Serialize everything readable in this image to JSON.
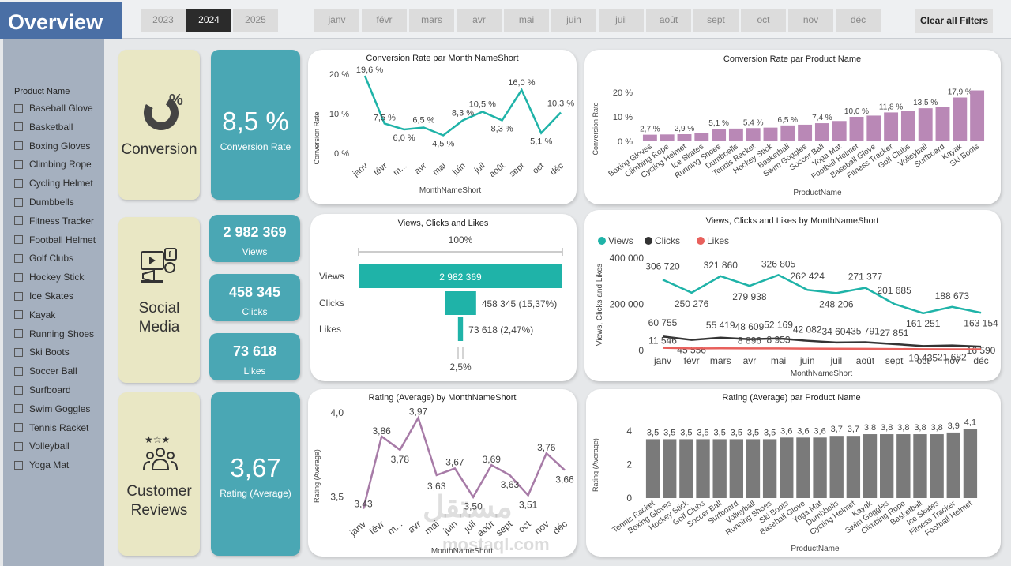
{
  "header": {
    "title": "Overview",
    "years": [
      "2023",
      "2024",
      "2025"
    ],
    "selected_year": "2024",
    "months": [
      "janv",
      "févr",
      "mars",
      "avr",
      "mai",
      "juin",
      "juil",
      "août",
      "sept",
      "oct",
      "nov",
      "déc"
    ],
    "clear_label": "Clear all Filters"
  },
  "sidebar": {
    "title": "Product Name",
    "items": [
      "Baseball Glove",
      "Basketball",
      "Boxing Gloves",
      "Climbing Rope",
      "Cycling Helmet",
      "Dumbbells",
      "Fitness Tracker",
      "Football Helmet",
      "Golf Clubs",
      "Hockey Stick",
      "Ice Skates",
      "Kayak",
      "Running Shoes",
      "Ski Boots",
      "Soccer Ball",
      "Surfboard",
      "Swim Goggles",
      "Tennis Racket",
      "Volleyball",
      "Yoga Mat"
    ]
  },
  "sections": {
    "conversion": {
      "label": "Conversion",
      "icon": "percent-pie-icon",
      "kpi_value": "8,5 %",
      "kpi_label": "Conversion Rate"
    },
    "social": {
      "label_line1": "Social",
      "label_line2": "Media",
      "icon": "social-media-icon",
      "views_value": "2 982 369",
      "views_label": "Views",
      "clicks_value": "458 345",
      "clicks_label": "Clicks",
      "likes_value": "73 618",
      "likes_label": "Likes"
    },
    "reviews": {
      "label_line1": "Customer",
      "label_line2": "Reviews",
      "icon": "customer-reviews-icon",
      "kpi_value": "3,67",
      "kpi_label": "Rating (Average)"
    }
  },
  "colors": {
    "teal": "#4aa7b4",
    "line_teal": "#1fb3a8",
    "purple_bar": "#b988b6",
    "purple_line": "#a77ba7",
    "gray_bar": "#7a7a7a",
    "clicks": "#333333",
    "likes": "#e8605c",
    "beige": "#e9e7c4",
    "header_blue": "#4a6fa5"
  },
  "watermark": {
    "arabic": "مستقل",
    "latin": "mostaql.com"
  },
  "chart_data": [
    {
      "id": "conv_month",
      "type": "line",
      "title": "Conversion Rate par Month NameShort",
      "xlabel": "MonthNameShort",
      "ylabel": "Conversion Rate",
      "categories": [
        "janv",
        "févr",
        "m...",
        "avr",
        "mai",
        "juin",
        "juil",
        "août",
        "sept",
        "oct",
        "déc"
      ],
      "values": [
        19.6,
        7.5,
        6.0,
        6.5,
        4.5,
        8.3,
        10.5,
        8.3,
        16.0,
        5.1,
        10.3
      ],
      "value_labels": [
        "19,6 %",
        "7,5 %",
        "6,0 %",
        "6,5 %",
        "4,5 %",
        "8,3 %",
        "10,5 %",
        "8,3 %",
        "16,0 %",
        "5,1 %",
        "10,3 %"
      ],
      "yticks": [
        "0 %",
        "10 %",
        "20 %"
      ],
      "ylim": [
        0,
        20
      ]
    },
    {
      "id": "conv_product",
      "type": "bar",
      "title": "Conversion Rate par Product Name",
      "xlabel": "ProductName",
      "ylabel": "Conversion Rate",
      "categories": [
        "Boxing Gloves",
        "Climbing Rope",
        "Cycling Helmet",
        "Ice Skates",
        "Running Shoes",
        "Dumbbells",
        "Tennis Racket",
        "Hockey Stick",
        "Basketball",
        "Swim Goggles",
        "Soccer Ball",
        "Yoga Mat",
        "Football Helmet",
        "Baseball Glove",
        "Fitness Tracker",
        "Golf Clubs",
        "Volleyball",
        "Surfboard",
        "Kayak",
        "Ski Boots"
      ],
      "values": [
        2.7,
        2.8,
        2.9,
        3.5,
        5.1,
        5.2,
        5.4,
        5.6,
        6.5,
        6.8,
        7.4,
        8.3,
        10.0,
        10.5,
        11.8,
        12.5,
        13.5,
        14.0,
        17.9,
        20.8
      ],
      "data_labels": {
        "0": "2,7 %",
        "2": "2,9 %",
        "4": "5,1 %",
        "6": "5,4 %",
        "8": "6,5 %",
        "10": "7,4 %",
        "12": "10,0 %",
        "14": "11,8 %",
        "16": "13,5 %",
        "18": "17,9 %"
      },
      "yticks": [
        "0 %",
        "10 %",
        "20 %"
      ],
      "ylim": [
        0,
        20
      ]
    },
    {
      "id": "funnel",
      "type": "bar",
      "title": "Views, Clicks and Likes",
      "categories": [
        "Views",
        "Clicks",
        "Likes"
      ],
      "values": [
        2982369,
        458345,
        73618
      ],
      "value_labels": [
        "2 982 369",
        "458 345 (15,37%)",
        "73 618 (2,47%)"
      ],
      "top_label": "100%",
      "bottom_label": "2,5%"
    },
    {
      "id": "vcl_month",
      "type": "line",
      "title": "Views, Clicks and Likes by MonthNameShort",
      "xlabel": "MonthNameShort",
      "ylabel": "Views, Clicks and Likes",
      "categories": [
        "janv",
        "févr",
        "mars",
        "avr",
        "mai",
        "juin",
        "juil",
        "août",
        "sept",
        "oct",
        "nov",
        "déc"
      ],
      "series": [
        {
          "name": "Views",
          "values": [
            306720,
            250276,
            321860,
            279938,
            326805,
            262424,
            248206,
            271377,
            201685,
            161251,
            188673,
            163154
          ],
          "labels": [
            "306 720",
            "250 276",
            "321 860",
            "279 938",
            "326 805",
            "262 424",
            "248 206",
            "271 377",
            "201 685",
            "161 251",
            "188 673",
            "163 154"
          ]
        },
        {
          "name": "Clicks",
          "values": [
            60755,
            45556,
            55419,
            48609,
            52169,
            42082,
            34604,
            35791,
            27851,
            19435,
            21682,
            16590
          ],
          "labels": [
            "60 755",
            "45 556",
            "55 419",
            "48 609",
            "52 169",
            "42 082",
            "34 604",
            "35 791",
            "27 851",
            "19 435",
            "21 682",
            "16 590"
          ]
        },
        {
          "name": "Likes",
          "values": [
            11546,
            9000,
            9500,
            8896,
            8953,
            8000,
            7500,
            7200,
            6500,
            5500,
            5300,
            5000
          ],
          "labels": [
            "11 546",
            "",
            "",
            "8 896",
            "8 953",
            "",
            "",
            "",
            "",
            "",
            "",
            ""
          ]
        }
      ],
      "yticks": [
        "0",
        "200 000",
        "400 000"
      ],
      "ylim": [
        0,
        400000
      ],
      "legend": "top-left"
    },
    {
      "id": "rating_month",
      "type": "line",
      "title": "Rating (Average) by MonthNameShort",
      "xlabel": "MonthNameShort",
      "ylabel": "Rating (Average)",
      "categories": [
        "janv",
        "févr",
        "m...",
        "avr",
        "mai",
        "juin",
        "juil",
        "août",
        "sept",
        "oct",
        "nov",
        "déc"
      ],
      "values": [
        3.43,
        3.86,
        3.78,
        3.97,
        3.63,
        3.67,
        3.5,
        3.69,
        3.63,
        3.51,
        3.76,
        3.66
      ],
      "value_labels": [
        "3,43",
        "3,86",
        "3,78",
        "3,97",
        "3,63",
        "3,67",
        "3,50",
        "3,69",
        "3,63",
        "3,51",
        "3,76",
        "3,66"
      ],
      "yticks": [
        "3,5",
        "4,0"
      ],
      "ylim": [
        3.4,
        4.0
      ]
    },
    {
      "id": "rating_product",
      "type": "bar",
      "title": "Rating (Average) par Product Name",
      "xlabel": "ProductName",
      "ylabel": "Rating (Average)",
      "categories": [
        "Tennis Racket",
        "Boxing Gloves",
        "Hockey Stick",
        "Golf Clubs",
        "Soccer Ball",
        "Surfboard",
        "Volleyball",
        "Running Shoes",
        "Ski Boots",
        "Baseball Glove",
        "Yoga Mat",
        "Dumbbells",
        "Cycling Helmet",
        "Kayak",
        "Swim Goggles",
        "Climbing Rope",
        "Basketball",
        "Ice Skates",
        "Fitness Tracker",
        "Football Helmet"
      ],
      "values": [
        3.5,
        3.5,
        3.5,
        3.5,
        3.5,
        3.5,
        3.5,
        3.5,
        3.6,
        3.6,
        3.6,
        3.7,
        3.7,
        3.8,
        3.8,
        3.8,
        3.8,
        3.8,
        3.9,
        4.1
      ],
      "value_labels": [
        "3,5",
        "3,5",
        "3,5",
        "3,5",
        "3,5",
        "3,5",
        "3,5",
        "3,5",
        "3,6",
        "3,6",
        "3,6",
        "3,7",
        "3,7",
        "3,8",
        "3,8",
        "3,8",
        "3,8",
        "3,8",
        "3,9",
        "4,1"
      ],
      "yticks": [
        "0",
        "2",
        "4"
      ],
      "ylim": [
        0,
        4.6
      ]
    }
  ]
}
